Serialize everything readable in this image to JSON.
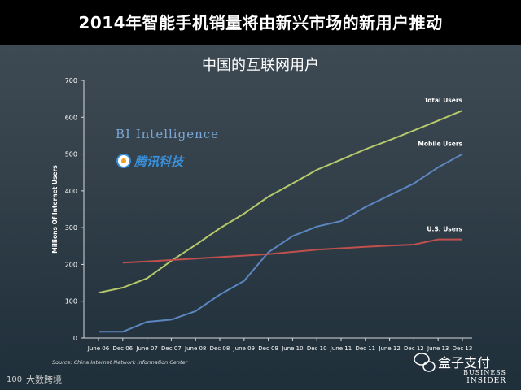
{
  "page_title": "2014年智能手机销量将由新兴市场的新用户推动",
  "watermarks": {
    "bi": "BI Intelligence",
    "tencent": "腾讯科技",
    "wechat": "盒子支付",
    "business_insider_top": "Business",
    "business_insider_bottom": "Insider",
    "bigdata": "大数跨境",
    "bigdata_mark": "100"
  },
  "source": "Source: China Internet Network Information Center",
  "colors": {
    "total": "#b5c96a",
    "mobile": "#5b86c0",
    "us": "#c0504d",
    "tencent_blue": "#3a8fd8"
  },
  "chart_data": {
    "type": "line",
    "title": "中国的互联网用户",
    "xlabel": "",
    "ylabel": "Millions Of Internet Users",
    "ylim": [
      0,
      700
    ],
    "yticks": [
      0,
      100,
      200,
      300,
      400,
      500,
      600,
      700
    ],
    "grid": false,
    "categories": [
      "June 06",
      "Dec 06",
      "June 07",
      "Dec 07",
      "June 08",
      "Dec 08",
      "June 09",
      "Dec 09",
      "June 10",
      "Dec 10",
      "June 11",
      "Dec 11",
      "June 12",
      "Dec 12",
      "June 13",
      "Dec 13"
    ],
    "series": [
      {
        "name": "Total Users",
        "color_key": "total",
        "values": [
          123,
          137,
          162,
          210,
          253,
          298,
          338,
          384,
          420,
          457,
          485,
          513,
          538,
          564,
          591,
          618
        ]
      },
      {
        "name": "Mobile Users",
        "color_key": "mobile",
        "values": [
          17,
          17,
          44,
          50,
          73,
          118,
          155,
          233,
          277,
          303,
          318,
          356,
          388,
          420,
          464,
          500
        ]
      },
      {
        "name": "U.S. Users",
        "color_key": "us",
        "values": [
          null,
          205,
          208,
          212,
          216,
          220,
          224,
          228,
          234,
          240,
          244,
          248,
          251,
          254,
          268,
          268
        ]
      }
    ]
  }
}
